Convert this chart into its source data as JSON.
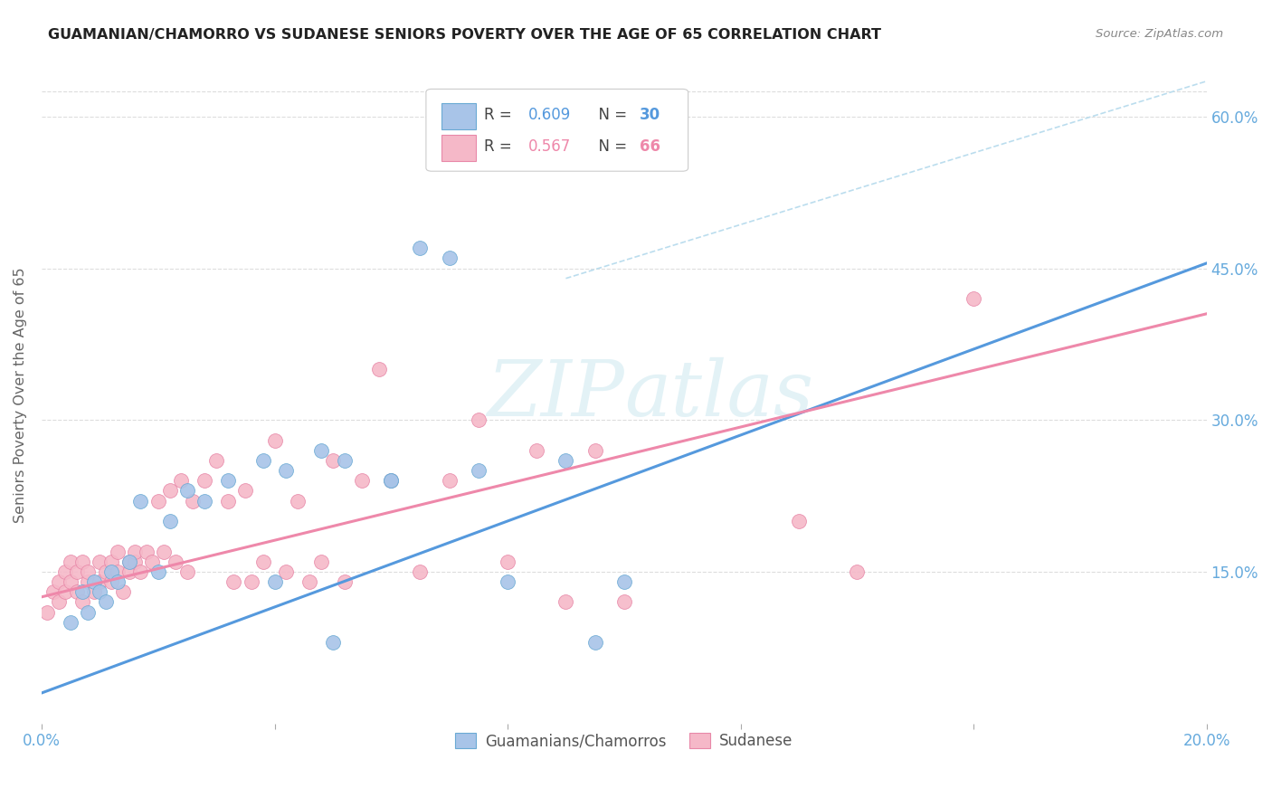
{
  "title": "GUAMANIAN/CHAMORRO VS SUDANESE SENIORS POVERTY OVER THE AGE OF 65 CORRELATION CHART",
  "source": "Source: ZipAtlas.com",
  "ylabel": "Seniors Poverty Over the Age of 65",
  "xlim": [
    0.0,
    0.2
  ],
  "ylim": [
    0.0,
    0.65
  ],
  "legend_label_blue": "Guamanians/Chamorros",
  "legend_label_pink": "Sudanese",
  "blue_fill": "#a8c4e8",
  "pink_fill": "#f5b8c8",
  "blue_edge": "#6aaad4",
  "pink_edge": "#e888a8",
  "blue_line": "#5599dd",
  "pink_line": "#ee88aa",
  "dash_line": "#bbddee",
  "axis_tick_color": "#66aadd",
  "ylabel_color": "#666666",
  "title_color": "#222222",
  "source_color": "#888888",
  "grid_color": "#dddddd",
  "watermark_color": "#cce8f0",
  "blue_line_x": [
    0.0,
    0.2
  ],
  "blue_line_y": [
    0.03,
    0.455
  ],
  "pink_line_x": [
    0.0,
    0.2
  ],
  "pink_line_y": [
    0.125,
    0.405
  ],
  "dash_line_x": [
    0.09,
    0.2
  ],
  "dash_line_y": [
    0.44,
    0.635
  ],
  "guam_x": [
    0.005,
    0.007,
    0.008,
    0.009,
    0.01,
    0.011,
    0.012,
    0.013,
    0.015,
    0.017,
    0.02,
    0.022,
    0.025,
    0.028,
    0.032,
    0.038,
    0.042,
    0.048,
    0.052,
    0.06,
    0.065,
    0.07,
    0.075,
    0.08,
    0.09,
    0.095,
    0.1,
    0.06,
    0.05,
    0.04
  ],
  "guam_y": [
    0.1,
    0.13,
    0.11,
    0.14,
    0.13,
    0.12,
    0.15,
    0.14,
    0.16,
    0.22,
    0.15,
    0.2,
    0.23,
    0.22,
    0.24,
    0.26,
    0.25,
    0.27,
    0.26,
    0.24,
    0.47,
    0.46,
    0.25,
    0.14,
    0.26,
    0.08,
    0.14,
    0.24,
    0.08,
    0.14
  ],
  "sudan_x": [
    0.001,
    0.002,
    0.003,
    0.003,
    0.004,
    0.004,
    0.005,
    0.005,
    0.006,
    0.006,
    0.007,
    0.007,
    0.008,
    0.008,
    0.009,
    0.01,
    0.01,
    0.011,
    0.012,
    0.012,
    0.013,
    0.013,
    0.014,
    0.015,
    0.015,
    0.016,
    0.016,
    0.017,
    0.018,
    0.019,
    0.02,
    0.021,
    0.022,
    0.023,
    0.024,
    0.025,
    0.026,
    0.028,
    0.03,
    0.032,
    0.033,
    0.035,
    0.036,
    0.038,
    0.04,
    0.042,
    0.044,
    0.046,
    0.048,
    0.05,
    0.052,
    0.055,
    0.058,
    0.06,
    0.065,
    0.07,
    0.075,
    0.08,
    0.085,
    0.09,
    0.095,
    0.1,
    0.13,
    0.14,
    0.16
  ],
  "sudan_y": [
    0.11,
    0.13,
    0.12,
    0.14,
    0.13,
    0.15,
    0.14,
    0.16,
    0.13,
    0.15,
    0.12,
    0.16,
    0.14,
    0.15,
    0.13,
    0.16,
    0.14,
    0.15,
    0.16,
    0.14,
    0.15,
    0.17,
    0.13,
    0.16,
    0.15,
    0.16,
    0.17,
    0.15,
    0.17,
    0.16,
    0.22,
    0.17,
    0.23,
    0.16,
    0.24,
    0.15,
    0.22,
    0.24,
    0.26,
    0.22,
    0.14,
    0.23,
    0.14,
    0.16,
    0.28,
    0.15,
    0.22,
    0.14,
    0.16,
    0.26,
    0.14,
    0.24,
    0.35,
    0.24,
    0.15,
    0.24,
    0.3,
    0.16,
    0.27,
    0.12,
    0.27,
    0.12,
    0.2,
    0.15,
    0.42
  ]
}
